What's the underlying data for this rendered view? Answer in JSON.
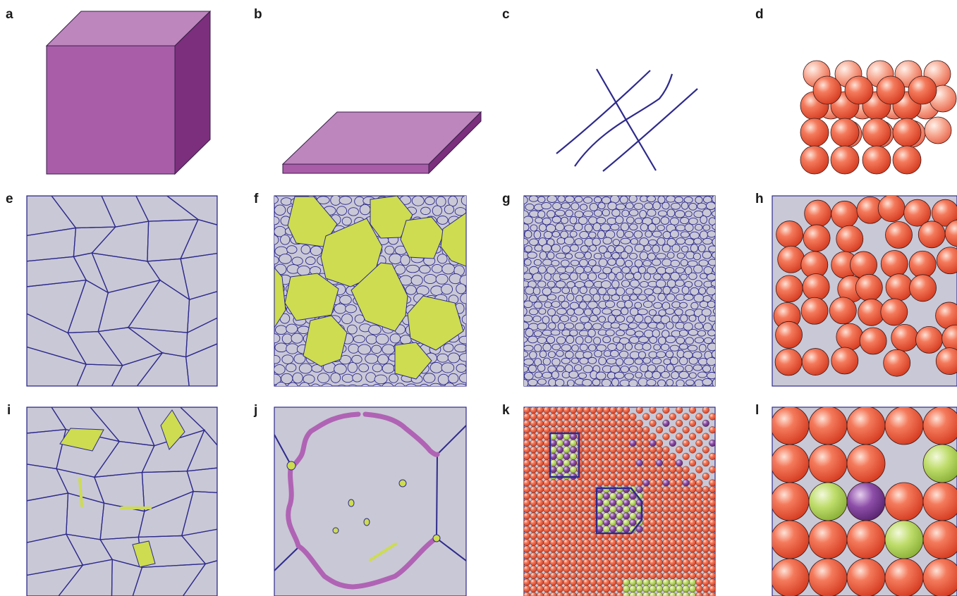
{
  "panel_labels": {
    "a": "a",
    "b": "b",
    "c": "c",
    "d": "d",
    "e": "e",
    "f": "f",
    "g": "g",
    "h": "h",
    "i": "i",
    "j": "j",
    "k": "k",
    "l": "l"
  },
  "colors": {
    "cube_front": "#a95da9",
    "cube_top": "#bd86bd",
    "cube_side": "#7c2f7c",
    "grain_fill": "#c9c8d6",
    "grain_edge": "#2e2a8c",
    "defect_green": "#cddc50",
    "atom_red": "#ee5a3d",
    "atom_red_dark": "#c7301a",
    "atom_green": "#b7d55a",
    "atom_purple": "#7a3d93",
    "boundary_purple": "#b063b4"
  }
}
